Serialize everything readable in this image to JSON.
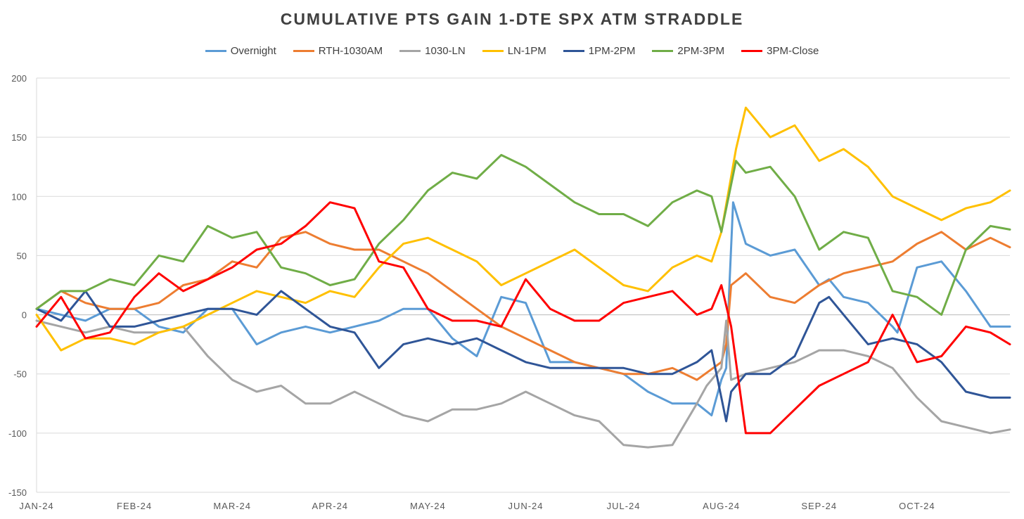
{
  "chart_data": {
    "type": "line",
    "title": "CUMULATIVE  PTS  GAIN  1-DTE  SPX  ATM  STRADDLE",
    "xlabel": "",
    "ylabel": "",
    "ylim": [
      -150,
      200
    ],
    "y_ticks": [
      200,
      150,
      100,
      50,
      0,
      -50,
      -100,
      -150
    ],
    "x_ticks": [
      "JAN-24",
      "FEB-24",
      "MAR-24",
      "APR-24",
      "MAY-24",
      "JUN-24",
      "JUL-24",
      "AUG-24",
      "SEP-24",
      "OCT-24"
    ],
    "x_range": [
      0,
      9.95
    ],
    "grid": true,
    "legend": "top",
    "series": [
      {
        "name": "Overnight",
        "color": "#5B9BD5",
        "x": [
          0,
          0.25,
          0.5,
          0.75,
          1,
          1.25,
          1.5,
          1.75,
          2,
          2.25,
          2.5,
          2.75,
          3,
          3.25,
          3.5,
          3.75,
          4,
          4.25,
          4.5,
          4.75,
          5,
          5.25,
          5.5,
          5.75,
          6,
          6.25,
          6.5,
          6.75,
          6.9,
          7,
          7.05,
          7.08,
          7.12,
          7.25,
          7.5,
          7.75,
          8,
          8.1,
          8.25,
          8.5,
          8.75,
          8.8,
          9,
          9.25,
          9.5,
          9.75,
          9.95
        ],
        "y": [
          5,
          0,
          -5,
          5,
          5,
          -10,
          -15,
          5,
          5,
          -25,
          -15,
          -10,
          -15,
          -10,
          -5,
          5,
          5,
          -20,
          -35,
          15,
          10,
          -40,
          -40,
          -45,
          -50,
          -65,
          -75,
          -75,
          -85,
          -55,
          -45,
          20,
          95,
          60,
          50,
          55,
          25,
          30,
          15,
          10,
          -10,
          -15,
          40,
          45,
          20,
          -10,
          -10
        ]
      },
      {
        "name": "RTH-1030AM",
        "color": "#ED7D31",
        "x": [
          0,
          0.25,
          0.5,
          0.75,
          1,
          1.25,
          1.5,
          1.75,
          2,
          2.25,
          2.5,
          2.75,
          3,
          3.25,
          3.5,
          3.75,
          4,
          4.25,
          4.5,
          4.75,
          5,
          5.25,
          5.5,
          5.75,
          6,
          6.25,
          6.5,
          6.75,
          7,
          7.05,
          7.1,
          7.25,
          7.5,
          7.75,
          8,
          8.25,
          8.5,
          8.75,
          9,
          9.25,
          9.5,
          9.75,
          9.95
        ],
        "y": [
          5,
          20,
          10,
          5,
          5,
          10,
          25,
          30,
          45,
          40,
          65,
          70,
          60,
          55,
          55,
          45,
          35,
          20,
          5,
          -10,
          -20,
          -30,
          -40,
          -45,
          -50,
          -50,
          -45,
          -55,
          -40,
          -25,
          25,
          35,
          15,
          10,
          25,
          35,
          40,
          45,
          60,
          70,
          55,
          65,
          57
        ]
      },
      {
        "name": "1030-LN",
        "color": "#A5A5A5",
        "x": [
          0,
          0.25,
          0.5,
          0.75,
          1,
          1.25,
          1.5,
          1.75,
          2,
          2.25,
          2.5,
          2.75,
          3,
          3.25,
          3.5,
          3.75,
          4,
          4.25,
          4.5,
          4.75,
          5,
          5.25,
          5.5,
          5.75,
          6,
          6.25,
          6.5,
          6.75,
          6.85,
          7,
          7.05,
          7.1,
          7.25,
          7.5,
          7.75,
          8,
          8.25,
          8.5,
          8.75,
          9,
          9.25,
          9.5,
          9.75,
          9.95
        ],
        "y": [
          -5,
          -10,
          -15,
          -10,
          -15,
          -15,
          -10,
          -35,
          -55,
          -65,
          -60,
          -75,
          -75,
          -65,
          -75,
          -85,
          -90,
          -80,
          -80,
          -75,
          -65,
          -75,
          -85,
          -90,
          -110,
          -112,
          -110,
          -75,
          -60,
          -45,
          -5,
          -55,
          -50,
          -45,
          -40,
          -30,
          -30,
          -35,
          -45,
          -70,
          -90,
          -95,
          -100,
          -97
        ]
      },
      {
        "name": "LN-1PM",
        "color": "#FFC000",
        "x": [
          0,
          0.25,
          0.5,
          0.75,
          1,
          1.25,
          1.5,
          1.75,
          2,
          2.25,
          2.5,
          2.75,
          3,
          3.25,
          3.5,
          3.75,
          4,
          4.25,
          4.5,
          4.75,
          5,
          5.25,
          5.5,
          5.75,
          6,
          6.25,
          6.5,
          6.75,
          6.9,
          7,
          7.15,
          7.25,
          7.5,
          7.75,
          8,
          8.25,
          8.5,
          8.75,
          9,
          9.25,
          9.5,
          9.75,
          9.95
        ],
        "y": [
          0,
          -30,
          -20,
          -20,
          -25,
          -15,
          -10,
          0,
          10,
          20,
          15,
          10,
          20,
          15,
          40,
          60,
          65,
          55,
          45,
          25,
          35,
          45,
          55,
          40,
          25,
          20,
          40,
          50,
          45,
          70,
          140,
          175,
          150,
          160,
          130,
          140,
          125,
          100,
          90,
          80,
          90,
          95,
          105
        ]
      },
      {
        "name": "1PM-2PM",
        "color": "#2F5597",
        "x": [
          0,
          0.25,
          0.5,
          0.75,
          1,
          1.25,
          1.5,
          1.75,
          2,
          2.25,
          2.5,
          2.75,
          3,
          3.25,
          3.5,
          3.75,
          4,
          4.25,
          4.5,
          4.75,
          5,
          5.25,
          5.5,
          5.75,
          6,
          6.25,
          6.5,
          6.75,
          6.9,
          7,
          7.05,
          7.1,
          7.25,
          7.5,
          7.75,
          8,
          8.1,
          8.25,
          8.5,
          8.75,
          9,
          9.25,
          9.5,
          9.75,
          9.95
        ],
        "y": [
          5,
          -5,
          20,
          -10,
          -10,
          -5,
          0,
          5,
          5,
          0,
          20,
          5,
          -10,
          -15,
          -45,
          -25,
          -20,
          -25,
          -20,
          -30,
          -40,
          -45,
          -45,
          -45,
          -45,
          -50,
          -50,
          -40,
          -30,
          -70,
          -90,
          -65,
          -50,
          -50,
          -35,
          10,
          15,
          0,
          -25,
          -20,
          -25,
          -40,
          -65,
          -70,
          -70
        ]
      },
      {
        "name": "2PM-3PM",
        "color": "#70AD47",
        "x": [
          0,
          0.25,
          0.5,
          0.75,
          1,
          1.25,
          1.5,
          1.75,
          2,
          2.25,
          2.5,
          2.75,
          3,
          3.25,
          3.5,
          3.75,
          4,
          4.25,
          4.5,
          4.75,
          5,
          5.25,
          5.5,
          5.75,
          6,
          6.25,
          6.5,
          6.75,
          6.9,
          7,
          7.15,
          7.25,
          7.5,
          7.75,
          8,
          8.25,
          8.5,
          8.75,
          9,
          9.25,
          9.5,
          9.75,
          9.95
        ],
        "y": [
          5,
          20,
          20,
          30,
          25,
          50,
          45,
          75,
          65,
          70,
          40,
          35,
          25,
          30,
          60,
          80,
          105,
          120,
          115,
          135,
          125,
          110,
          95,
          85,
          85,
          75,
          95,
          105,
          100,
          70,
          130,
          120,
          125,
          100,
          55,
          70,
          65,
          20,
          15,
          0,
          55,
          75,
          72
        ]
      },
      {
        "name": "3PM-Close",
        "color": "#FF0000",
        "x": [
          0,
          0.25,
          0.5,
          0.75,
          1,
          1.25,
          1.5,
          1.75,
          2,
          2.25,
          2.5,
          2.75,
          3,
          3.25,
          3.5,
          3.75,
          4,
          4.25,
          4.5,
          4.75,
          5,
          5.25,
          5.5,
          5.75,
          6,
          6.25,
          6.5,
          6.75,
          6.9,
          7,
          7.1,
          7.25,
          7.5,
          7.75,
          8,
          8.25,
          8.5,
          8.75,
          9,
          9.25,
          9.5,
          9.75,
          9.95
        ],
        "y": [
          -10,
          15,
          -20,
          -15,
          15,
          35,
          20,
          30,
          40,
          55,
          60,
          75,
          95,
          90,
          45,
          40,
          5,
          -5,
          -5,
          -10,
          30,
          5,
          -5,
          -5,
          10,
          15,
          20,
          0,
          5,
          25,
          -10,
          -100,
          -100,
          -80,
          -60,
          -50,
          -40,
          0,
          -40,
          -35,
          -10,
          -15,
          -25
        ]
      }
    ]
  }
}
